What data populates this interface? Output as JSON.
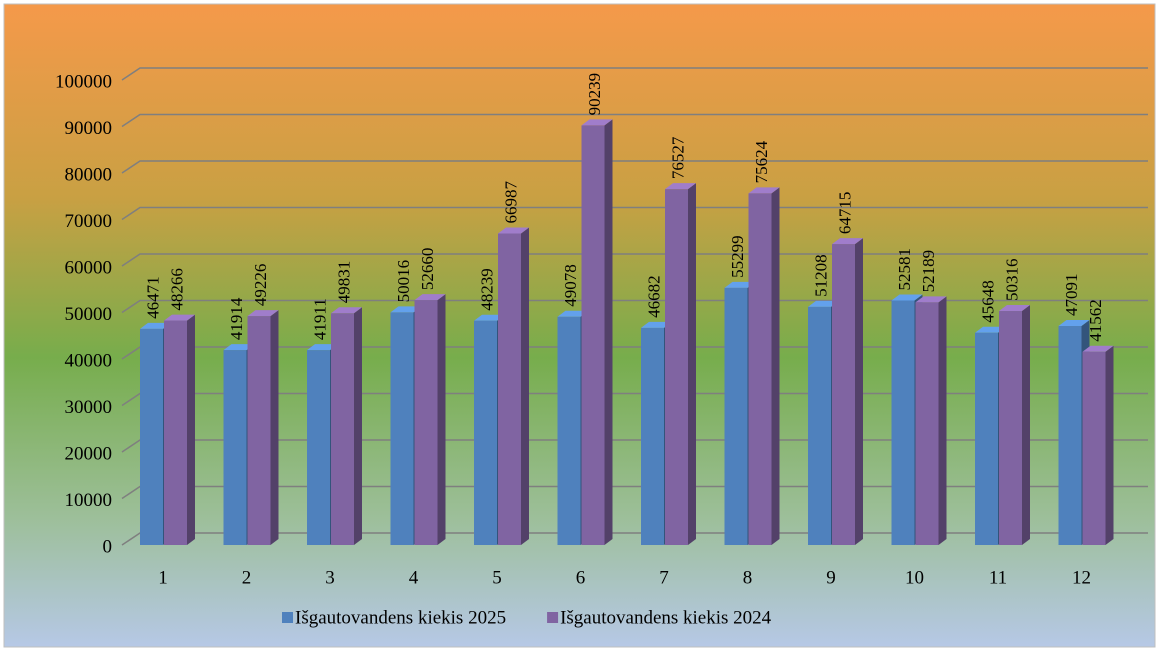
{
  "chart_data": {
    "type": "bar3d",
    "categories": [
      "1",
      "2",
      "3",
      "4",
      "5",
      "6",
      "7",
      "8",
      "9",
      "10",
      "11",
      "12"
    ],
    "series": [
      {
        "name": "Išgautovandens kiekis 2025",
        "color": "#4f81bd",
        "values": [
          46471,
          41914,
          41911,
          50016,
          48239,
          49078,
          46682,
          55299,
          51208,
          52581,
          45648,
          47091
        ]
      },
      {
        "name": "Išgautovandens kiekis 2024",
        "color": "#8064a2",
        "values": [
          48266,
          49226,
          49831,
          52660,
          66987,
          90239,
          76527,
          75624,
          64715,
          52189,
          50316,
          41562
        ]
      }
    ],
    "ylim": [
      0,
      100000
    ],
    "yticks": [
      0,
      10000,
      20000,
      30000,
      40000,
      50000,
      60000,
      70000,
      80000,
      90000,
      100000
    ],
    "grid": true,
    "legend": "bottom"
  }
}
